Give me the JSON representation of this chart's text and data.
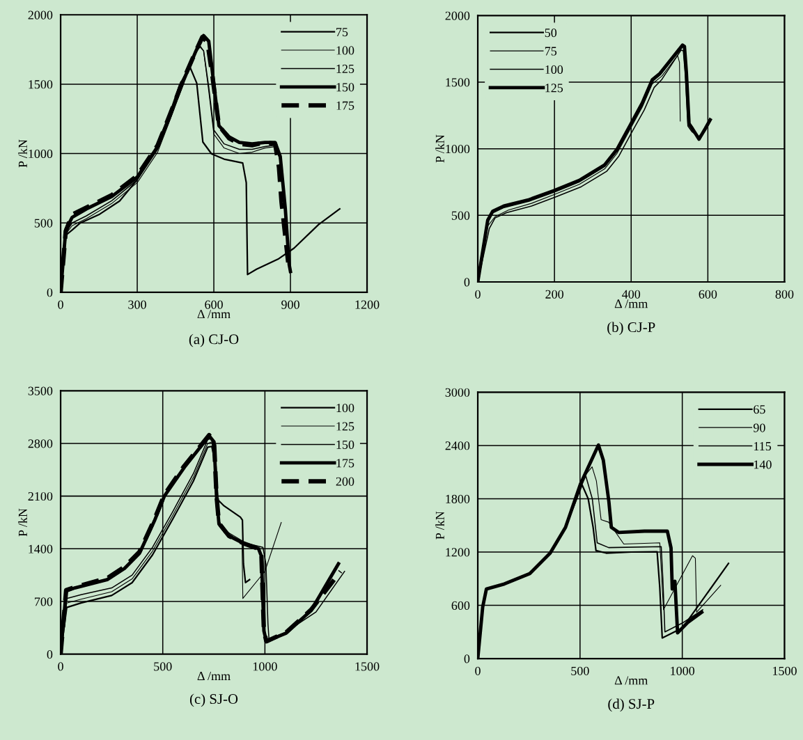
{
  "chart_data": [
    {
      "type": "line",
      "title": "(a) CJ-O",
      "xlabel": "Δ /mm",
      "ylabel": "P /kN",
      "xlim": [
        0,
        1200
      ],
      "ylim": [
        0,
        2000
      ],
      "xticks": [
        0,
        300,
        600,
        900,
        1200
      ],
      "yticks": [
        0,
        500,
        1000,
        1500,
        2000
      ],
      "grid": true,
      "legend": "top right",
      "marker": "none",
      "series": [
        {
          "name": "75",
          "color": "#000000",
          "x": [
            0,
            21,
            46,
            75,
            153,
            231,
            299,
            367,
            426,
            465,
            505,
            533,
            557,
            591,
            640,
            713,
            727,
            732,
            767,
            854,
            914,
            1010,
            1093
          ],
          "values": [
            0,
            412,
            450,
            497,
            563,
            658,
            809,
            1017,
            1282,
            1490,
            1631,
            1508,
            1083,
            998,
            960,
            932,
            790,
            128,
            166,
            242,
            318,
            488,
            601
          ]
        },
        {
          "name": "100",
          "color": "#000000",
          "x": [
            0,
            20,
            45,
            100,
            200,
            300,
            380,
            430,
            480,
            520,
            545,
            560,
            580,
            600,
            640,
            700,
            750,
            800,
            840,
            860,
            880,
            895
          ],
          "values": [
            0,
            420,
            480,
            530,
            640,
            790,
            1010,
            1250,
            1500,
            1690,
            1780,
            1740,
            1450,
            1140,
            1040,
            1000,
            1010,
            1040,
            1050,
            950,
            600,
            200
          ]
        },
        {
          "name": "125",
          "color": "#000000",
          "x": [
            0,
            20,
            45,
            100,
            200,
            300,
            380,
            430,
            480,
            520,
            545,
            560,
            580,
            600,
            640,
            700,
            750,
            800,
            840,
            860,
            880,
            895
          ],
          "values": [
            0,
            430,
            500,
            550,
            660,
            810,
            1030,
            1270,
            1520,
            1700,
            1770,
            1740,
            1480,
            1170,
            1070,
            1030,
            1030,
            1050,
            1060,
            960,
            600,
            180
          ]
        },
        {
          "name": "150",
          "color": "#000000",
          "x": [
            0,
            20,
            45,
            100,
            200,
            300,
            380,
            430,
            480,
            530,
            560,
            580,
            600,
            620,
            660,
            700,
            750,
            800,
            840,
            860,
            880,
            895,
            900
          ],
          "values": [
            0,
            450,
            540,
            600,
            690,
            830,
            1050,
            1280,
            1520,
            1740,
            1850,
            1810,
            1500,
            1200,
            1120,
            1080,
            1070,
            1080,
            1080,
            980,
            600,
            200,
            150
          ]
        },
        {
          "name": "175",
          "color": "#000000",
          "line_style": "dashed",
          "x": [
            0,
            20,
            45,
            100,
            200,
            300,
            380,
            430,
            480,
            530,
            555,
            575,
            595,
            620,
            660,
            700,
            750,
            800,
            840,
            855,
            865,
            880,
            895
          ],
          "values": [
            0,
            440,
            560,
            610,
            700,
            840,
            1060,
            1290,
            1530,
            1740,
            1840,
            1800,
            1550,
            1200,
            1110,
            1070,
            1060,
            1080,
            1070,
            900,
            650,
            400,
            150
          ]
        }
      ]
    },
    {
      "type": "line",
      "title": "(b) CJ-P",
      "xlabel": "Δ /mm",
      "ylabel": "P /kN",
      "xlim": [
        0,
        800
      ],
      "ylim": [
        0,
        2000
      ],
      "xticks": [
        0,
        200,
        400,
        600,
        800
      ],
      "yticks": [
        0,
        500,
        1000,
        1500,
        2000
      ],
      "grid": true,
      "legend": "top left",
      "marker": "none",
      "series": [
        {
          "name": "50",
          "color": "#000000",
          "x": [
            0,
            26,
            39,
            68,
            134,
            199,
            265,
            331,
            363,
            396,
            429,
            455,
            475,
            534,
            539,
            544,
            551,
            560,
            577,
            593,
            606
          ],
          "values": [
            0,
            450,
            520,
            560,
            608,
            676,
            753,
            869,
            985,
            1159,
            1333,
            1507,
            1555,
            1768,
            1758,
            1565,
            1178,
            1140,
            1080,
            1140,
            1210
          ]
        },
        {
          "name": "75",
          "color": "#000000",
          "x": [
            0,
            26,
            45,
            80,
            140,
            199,
            265,
            331,
            363,
            396,
            429,
            455,
            480,
            521,
            526,
            528
          ],
          "values": [
            0,
            420,
            490,
            540,
            590,
            656,
            733,
            849,
            965,
            1139,
            1313,
            1487,
            1545,
            1700,
            1650,
            1208
          ]
        },
        {
          "name": "100",
          "color": "#000000",
          "x": [
            0,
            30,
            45,
            75,
            140,
            205,
            270,
            336,
            368,
            401,
            434,
            460,
            480,
            530,
            536,
            541,
            548,
            558,
            575,
            592,
            605
          ],
          "values": [
            0,
            400,
            480,
            520,
            570,
            640,
            715,
            830,
            945,
            1120,
            1290,
            1460,
            1520,
            1740,
            1735,
            1560,
            1170,
            1130,
            1090,
            1130,
            1200
          ]
        },
        {
          "name": "125",
          "color": "#000000",
          "x": [
            0,
            26,
            39,
            68,
            134,
            199,
            265,
            331,
            363,
            396,
            429,
            455,
            475,
            534,
            539,
            544,
            551,
            560,
            577,
            593,
            606
          ],
          "values": [
            0,
            464,
            531,
            570,
            618,
            686,
            763,
            879,
            995,
            1169,
            1343,
            1517,
            1565,
            1778,
            1768,
            1575,
            1188,
            1150,
            1072,
            1150,
            1217
          ]
        }
      ]
    },
    {
      "type": "line",
      "title": "(c) SJ-O",
      "xlabel": "Δ /mm",
      "ylabel": "P /kN",
      "xlim": [
        0,
        1500
      ],
      "ylim": [
        0,
        3500
      ],
      "xticks": [
        0,
        500,
        1000,
        1500
      ],
      "yticks": [
        0,
        700,
        1400,
        2100,
        2800,
        3500
      ],
      "grid": true,
      "legend": "top right",
      "marker": "none",
      "series": [
        {
          "name": "100",
          "color": "#000000",
          "x": [
            0,
            30,
            100,
            250,
            350,
            450,
            550,
            650,
            720,
            740,
            760,
            770,
            800,
            880,
            890,
            895,
            905,
            925
          ],
          "values": [
            0,
            620,
            680,
            780,
            950,
            1320,
            1800,
            2300,
            2750,
            2760,
            2500,
            2050,
            1970,
            1820,
            1780,
            1200,
            950,
            990
          ]
        },
        {
          "name": "125",
          "color": "#000000",
          "x": [
            0,
            30,
            100,
            250,
            350,
            450,
            550,
            650,
            720,
            740,
            760,
            770,
            800,
            880,
            888,
            892,
            1000,
            1080
          ],
          "values": [
            0,
            680,
            730,
            830,
            1000,
            1370,
            1850,
            2350,
            2800,
            2820,
            2500,
            1800,
            1650,
            1520,
            1480,
            740,
            1100,
            1750
          ]
        },
        {
          "name": "150",
          "color": "#000000",
          "x": [
            0,
            30,
            100,
            250,
            350,
            450,
            550,
            650,
            720,
            740,
            760,
            770,
            800,
            900,
            990,
            1005,
            1015,
            1020,
            1100,
            1250,
            1390
          ],
          "values": [
            0,
            740,
            790,
            880,
            1050,
            1420,
            1900,
            2400,
            2850,
            2870,
            2500,
            1800,
            1620,
            1480,
            1420,
            1200,
            400,
            200,
            290,
            560,
            1100
          ]
        },
        {
          "name": "175",
          "color": "#000000",
          "x": [
            0,
            27,
            69,
            228,
            313,
            386,
            459,
            508,
            605,
            727,
            751,
            763,
            775,
            824,
            897,
            969,
            983,
            995,
            1007,
            1104,
            1226,
            1360
          ],
          "values": [
            0,
            840,
            880,
            990,
            1140,
            1340,
            1770,
            2100,
            2480,
            2900,
            2820,
            2100,
            1730,
            1570,
            1470,
            1400,
            1300,
            310,
            170,
            280,
            580,
            1200
          ]
        },
        {
          "name": "200",
          "color": "#000000",
          "line_style": "dashed",
          "x": [
            0,
            27,
            69,
            228,
            313,
            386,
            459,
            508,
            605,
            727,
            751,
            763,
            775,
            824,
            897,
            969,
            983,
            995,
            1007,
            1104,
            1226,
            1370
          ],
          "values": [
            0,
            850,
            890,
            1010,
            1160,
            1360,
            1790,
            2120,
            2500,
            2910,
            2830,
            2110,
            1740,
            1570,
            1470,
            1400,
            1300,
            310,
            170,
            290,
            590,
            1100
          ]
        }
      ]
    },
    {
      "type": "line",
      "title": "(d) SJ-P",
      "xlabel": "Δ /mm",
      "ylabel": "P /kN",
      "xlim": [
        0,
        1500
      ],
      "ylim": [
        0,
        3000
      ],
      "xticks": [
        0,
        500,
        1000,
        1500
      ],
      "yticks": [
        0,
        600,
        1200,
        1800,
        2400,
        3000
      ],
      "grid": true,
      "legend": "top right",
      "marker": "none",
      "series": [
        {
          "name": "65",
          "color": "#000000",
          "x": [
            0,
            24,
            42,
            130,
            254,
            354,
            429,
            480,
            510,
            540,
            564,
            578,
            628,
            750,
            877,
            890,
            902,
            1002,
            1226
          ],
          "values": [
            0,
            580,
            783,
            841,
            957,
            1188,
            1478,
            1780,
            1957,
            1800,
            1478,
            1217,
            1188,
            1200,
            1203,
            800,
            232,
            348,
            1072
          ]
        },
        {
          "name": "90",
          "color": "#000000",
          "x": [
            0,
            24,
            42,
            130,
            254,
            354,
            429,
            480,
            520,
            559,
            580,
            603,
            640,
            714,
            890,
            908,
            1050,
            1064,
            1070,
            1188
          ],
          "values": [
            0,
            580,
            783,
            841,
            957,
            1188,
            1478,
            1800,
            2050,
            2159,
            2000,
            1565,
            1536,
            1290,
            1304,
            551,
            1159,
            1130,
            522,
            826
          ]
        },
        {
          "name": "115",
          "color": "#000000",
          "x": [
            0,
            24,
            42,
            130,
            254,
            354,
            429,
            480,
            528,
            560,
            584,
            640,
            897,
            905,
            915,
            1000,
            1100
          ],
          "values": [
            0,
            580,
            783,
            841,
            957,
            1188,
            1478,
            1800,
            2058,
            1800,
            1304,
            1250,
            1261,
            900,
            300,
            400,
            550
          ]
        },
        {
          "name": "140",
          "color": "#000000",
          "x": [
            0,
            24,
            42,
            130,
            254,
            354,
            429,
            503,
            590,
            614,
            641,
            653,
            690,
            815,
            927,
            945,
            951,
            964,
            977,
            1026,
            1095
          ],
          "values": [
            0,
            580,
            783,
            841,
            957,
            1188,
            1478,
            1971,
            2406,
            2232,
            1768,
            1478,
            1420,
            1435,
            1435,
            1246,
            783,
            870,
            290,
            406,
            522
          ]
        }
      ]
    }
  ]
}
